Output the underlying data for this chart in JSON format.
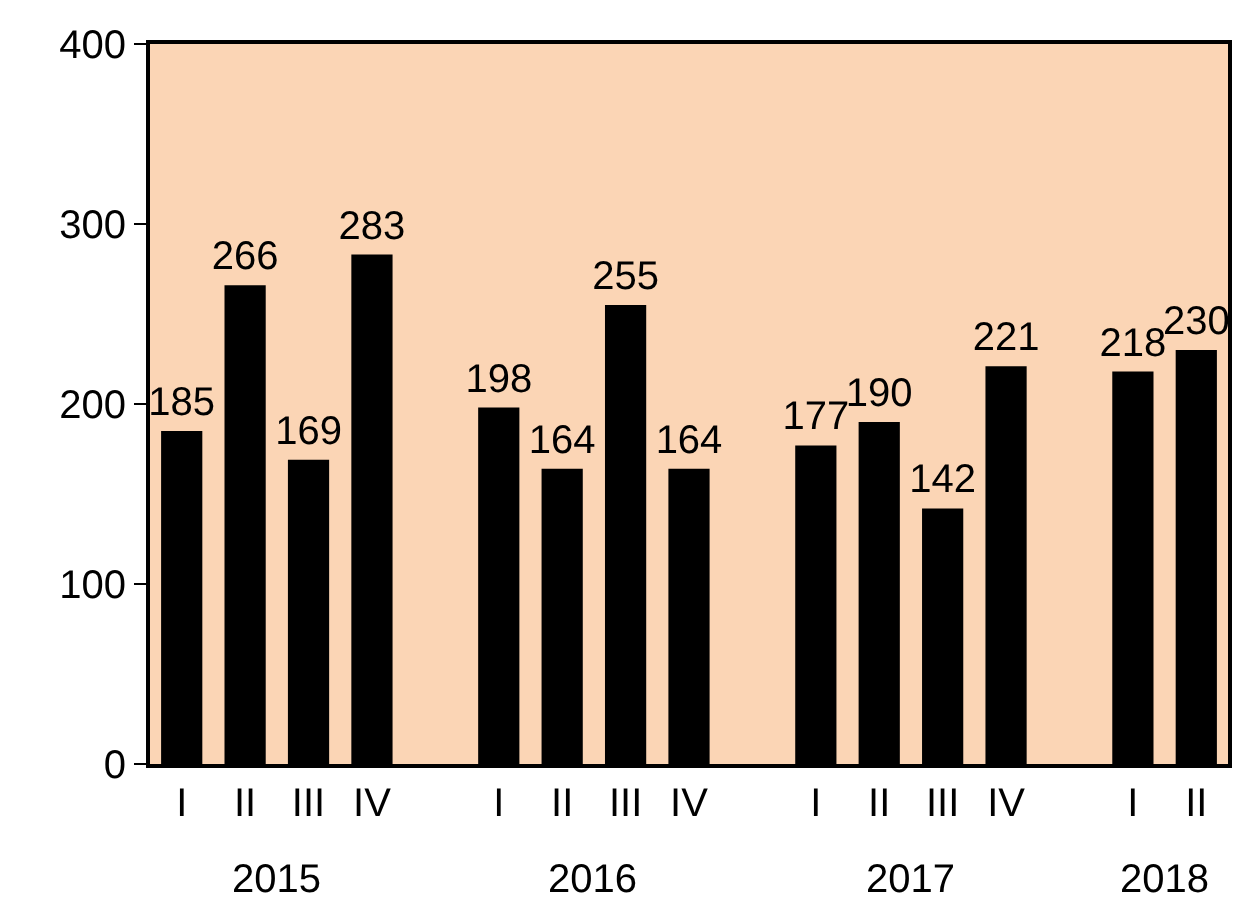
{
  "chart_data": {
    "type": "bar",
    "categories": [
      "I",
      "II",
      "III",
      "IV",
      null,
      "I",
      "II",
      "III",
      "IV",
      null,
      "I",
      "II",
      "III",
      "IV",
      null,
      "I",
      "II"
    ],
    "values": [
      185,
      266,
      169,
      283,
      null,
      198,
      164,
      255,
      164,
      null,
      177,
      190,
      142,
      221,
      null,
      218,
      230
    ],
    "color": "#000000",
    "ylim": [
      0,
      400
    ],
    "yticks": [
      0,
      100,
      200,
      300,
      400
    ],
    "data_labels": true,
    "grid": false,
    "annotations": [
      "2015",
      "2016",
      "2017",
      "2018"
    ]
  }
}
